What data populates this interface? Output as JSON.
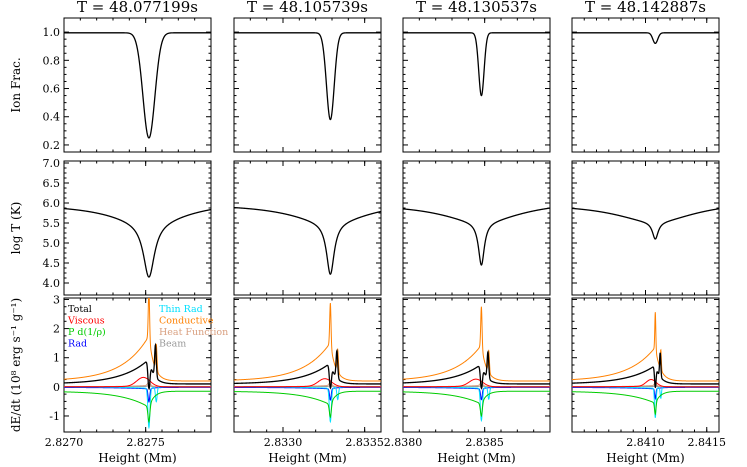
{
  "chart_data": {
    "type": "line",
    "layout": "3 rows x 4 columns grid of line panels sharing rows",
    "columns": [
      {
        "title": "T = 48.077199s",
        "x_center": 2.82752,
        "xlim": [
          2.827,
          2.8279
        ],
        "xticks": [
          {
            "v": 2.827,
            "label": "2.8270"
          },
          {
            "v": 2.8275,
            "label": "2.8275"
          }
        ],
        "ion_min": 0.25,
        "ion_width": 4e-05,
        "logT_min": 4.15,
        "logT_width": 7.5e-05,
        "spike_scale": 1.0,
        "shift_scale": 1.0
      },
      {
        "title": "T = 48.105739s",
        "x_center": 2.83329,
        "xlim": [
          2.8327,
          2.8336
        ],
        "xticks": [
          {
            "v": 2.833,
            "label": "2.8330"
          },
          {
            "v": 2.8335,
            "label": "2.8335"
          }
        ],
        "ion_min": 0.38,
        "ion_width": 2.6e-05,
        "logT_min": 4.22,
        "logT_width": 5.2e-05,
        "spike_scale": 0.85,
        "shift_scale": 0.85
      },
      {
        "title": "T = 48.130537s",
        "x_center": 2.83848,
        "xlim": [
          2.838,
          2.8389
        ],
        "xticks": [
          {
            "v": 2.838,
            "label": "2.8380"
          },
          {
            "v": 2.8385,
            "label": "2.8385"
          }
        ],
        "ion_min": 0.55,
        "ion_width": 1.8e-05,
        "logT_min": 4.45,
        "logT_width": 4e-05,
        "spike_scale": 0.82,
        "shift_scale": 0.8
      },
      {
        "title": "T = 48.142887s",
        "x_center": 2.84108,
        "xlim": [
          2.8404,
          2.8416
        ],
        "xticks": [
          {
            "v": 2.841,
            "label": "2.8410"
          },
          {
            "v": 2.8415,
            "label": "2.8415"
          }
        ],
        "ion_min": 0.92,
        "ion_width": 2.2e-05,
        "logT_min": 5.1,
        "logT_width": 5.2e-05,
        "spike_scale": 0.75,
        "shift_scale": 0.75
      }
    ],
    "rows": [
      {
        "ylabel": "Ion Frac.",
        "ylim": [
          0.15,
          1.1
        ],
        "yticks": [
          {
            "v": 0.2,
            "label": "0.2"
          },
          {
            "v": 0.4,
            "label": "0.4"
          },
          {
            "v": 0.6,
            "label": "0.6"
          },
          {
            "v": 0.8,
            "label": "0.8"
          },
          {
            "v": 1.0,
            "label": "1.0"
          }
        ],
        "series": [
          {
            "name": "Ion Fraction",
            "color": "#000000",
            "plateau": 0.995
          }
        ]
      },
      {
        "ylabel": "log T (K)",
        "ylim": [
          3.7,
          7.05
        ],
        "yticks": [
          {
            "v": 4.0,
            "label": "4.0"
          },
          {
            "v": 4.5,
            "label": "4.5"
          },
          {
            "v": 5.0,
            "label": "5.0"
          },
          {
            "v": 5.5,
            "label": "5.5"
          },
          {
            "v": 6.0,
            "label": "6.0"
          },
          {
            "v": 6.5,
            "label": "6.5"
          },
          {
            "v": 7.0,
            "label": "7.0"
          }
        ],
        "series": [
          {
            "name": "log T",
            "color": "#000000",
            "far": 5.98
          }
        ]
      },
      {
        "ylabel": "dE/dt (10⁸ erg s⁻¹ g⁻¹)",
        "ylim": [
          -1.55,
          3.05
        ],
        "yticks": [
          {
            "v": -1,
            "label": "-1"
          },
          {
            "v": 0,
            "label": "0"
          },
          {
            "v": 1,
            "label": "1"
          },
          {
            "v": 2,
            "label": "2"
          },
          {
            "v": 3,
            "label": "3"
          }
        ],
        "series": [
          {
            "name": "Total",
            "color": "#000000",
            "peak": 0.85
          },
          {
            "name": "Viscous",
            "color": "#ff0000",
            "peak": 0.3
          },
          {
            "name": "P d(1/ρ)",
            "color": "#00cc00",
            "peak": -0.55
          },
          {
            "name": "Rad",
            "color": "#0000ff",
            "peak": -0.1
          },
          {
            "name": "Thin Rad",
            "color": "#00e0ff",
            "peak": -0.4
          },
          {
            "name": "Conductive",
            "color": "#ff8000",
            "peak": 1.55
          },
          {
            "name": "Heat Function",
            "color": "#d9a080",
            "peak": 0.05
          },
          {
            "name": "Beam",
            "color": "#999999",
            "peak": 0.02
          }
        ]
      }
    ],
    "xlabel": "Height (Mm)"
  },
  "legend": {
    "left": [
      {
        "label": "Total",
        "color": "#000000"
      },
      {
        "label": "Viscous",
        "color": "#ff0000"
      },
      {
        "label": "P d(1/ρ)",
        "color": "#00cc00"
      },
      {
        "label": "Rad",
        "color": "#0000ff"
      }
    ],
    "right": [
      {
        "label": "Thin Rad",
        "color": "#00e0ff"
      },
      {
        "label": "Conductive",
        "color": "#ff8000"
      },
      {
        "label": "Heat Function",
        "color": "#d9a080"
      },
      {
        "label": "Beam",
        "color": "#999999"
      }
    ]
  }
}
